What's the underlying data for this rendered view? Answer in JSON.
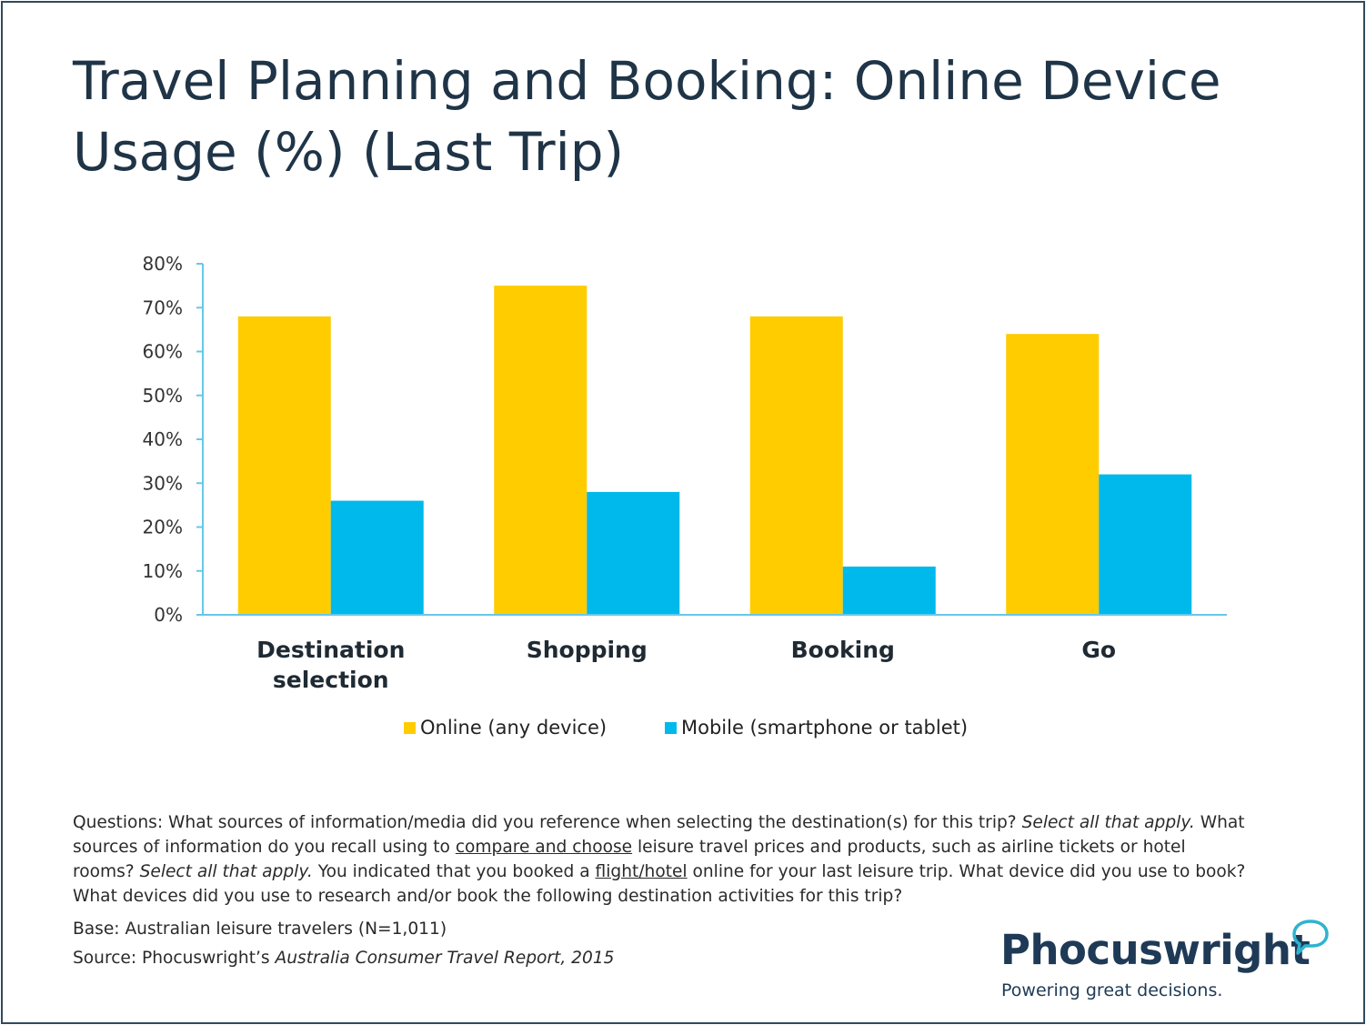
{
  "title": "Travel Planning and Booking: Online Device Usage (%) (Last Trip)",
  "colors": {
    "accent_online": "#FFCC00",
    "accent_mobile": "#00B9EC",
    "axis": "#66c8ea",
    "frame": "#2f4a5e",
    "text": "#1f3447"
  },
  "chart_data": {
    "type": "bar",
    "categories": [
      "Destination selection",
      "Shopping",
      "Booking",
      "Go"
    ],
    "series": [
      {
        "name": "Online (any device)",
        "color": "#FFCC00",
        "values": [
          68,
          75,
          68,
          64
        ]
      },
      {
        "name": "Mobile (smartphone or tablet)",
        "color": "#00B9EC",
        "values": [
          26,
          28,
          11,
          32
        ]
      }
    ],
    "ylim": [
      0,
      80
    ],
    "yticks": [
      "0%",
      "10%",
      "20%",
      "30%",
      "40%",
      "50%",
      "60%",
      "70%",
      "80%"
    ],
    "legend_position": "bottom",
    "grid": false
  },
  "notes": {
    "q1": "Questions: What sources of information/media did you reference when selecting the destination(s) for this trip? ",
    "q1_em": "Select all that apply.",
    "q2_pre": " What sources of information do you recall using to ",
    "q2_u": "compare and choose",
    "q2_post": " leisure travel prices and products, such as airline tickets or hotel rooms? ",
    "q2_em": "Select all that apply.",
    "q3_pre": " You indicated that you booked a ",
    "q3_u": "flight/hotel",
    "q3_post": " online for your last leisure trip. What device did you use to book? What devices did you use to research and/or book the following destination activities for this trip?",
    "base": "Base: Australian leisure travelers (N=1,011)",
    "source_pre": "Source: Phocuswright’s ",
    "source_em": "Australia Consumer Travel Report, 2015"
  },
  "logo": {
    "word": "Phocuswright",
    "tagline": "Powering great decisions."
  }
}
